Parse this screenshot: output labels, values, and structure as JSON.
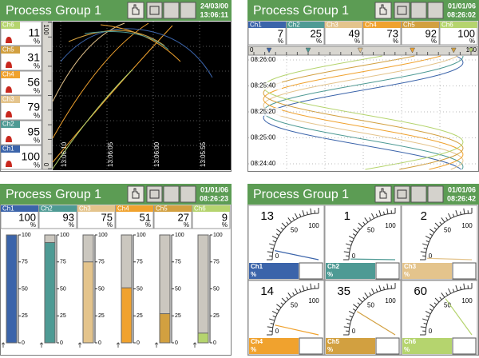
{
  "panels": [
    {
      "title": "Process Group 1",
      "date": "24/03/00",
      "time": "13:06:11",
      "unit": "%",
      "channels": [
        {
          "name": "Ch6",
          "value": 11,
          "color": "#b5d46e"
        },
        {
          "name": "Ch5",
          "value": 31,
          "color": "#d2a040"
        },
        {
          "name": "Ch4",
          "value": 56,
          "color": "#f0a22e"
        },
        {
          "name": "Ch3",
          "value": 79,
          "color": "#e4c48c"
        },
        {
          "name": "Ch2",
          "value": 95,
          "color": "#4e9a94"
        },
        {
          "name": "Ch1",
          "value": 100,
          "color": "#3b64aa"
        }
      ],
      "scale": [
        100,
        0
      ],
      "times": [
        "13:06:10",
        "13:06:05",
        "13:06:00",
        "13:05:55"
      ]
    },
    {
      "title": "Process Group 1",
      "date": "01/01/06",
      "time": "08:26:02",
      "unit": "%",
      "channels": [
        {
          "name": "Ch1",
          "value": 7,
          "color": "#3b64aa"
        },
        {
          "name": "Ch2",
          "value": 25,
          "color": "#4e9a94"
        },
        {
          "name": "Ch3",
          "value": 49,
          "color": "#e4c48c"
        },
        {
          "name": "Ch4",
          "value": 73,
          "color": "#f0a22e"
        },
        {
          "name": "Ch5",
          "value": 92,
          "color": "#d2a040"
        },
        {
          "name": "Ch6",
          "value": 100,
          "color": "#b5d46e"
        }
      ],
      "scale": [
        0,
        100
      ],
      "times": [
        "08:26:00",
        "08:25:40",
        "08:25:20",
        "08:25:00",
        "08:24:40"
      ]
    },
    {
      "title": "Process Group 1",
      "date": "01/01/06",
      "time": "08:26:23",
      "unit": "%",
      "channels": [
        {
          "name": "Ch1",
          "value": 100,
          "color": "#3b64aa"
        },
        {
          "name": "Ch2",
          "value": 93,
          "color": "#4e9a94"
        },
        {
          "name": "Ch3",
          "value": 75,
          "color": "#e4c48c"
        },
        {
          "name": "Ch4",
          "value": 51,
          "color": "#f0a22e"
        },
        {
          "name": "Ch5",
          "value": 27,
          "color": "#d2a040"
        },
        {
          "name": "Ch6",
          "value": 9,
          "color": "#b5d46e"
        }
      ],
      "scale": [
        100,
        75,
        50,
        25,
        0
      ]
    },
    {
      "title": "Process Group 1",
      "date": "01/01/06",
      "time": "08:26:42",
      "unit": "%",
      "channels": [
        {
          "name": "Ch1",
          "value": 13,
          "color": "#3b64aa"
        },
        {
          "name": "Ch2",
          "value": 1,
          "color": "#4e9a94"
        },
        {
          "name": "Ch3",
          "value": 2,
          "color": "#e4c48c"
        },
        {
          "name": "Ch4",
          "value": 14,
          "color": "#f0a22e"
        },
        {
          "name": "Ch5",
          "value": 35,
          "color": "#d2a040"
        },
        {
          "name": "Ch6",
          "value": 60,
          "color": "#b5d46e"
        }
      ],
      "scale": [
        0,
        50,
        100
      ]
    }
  ]
}
